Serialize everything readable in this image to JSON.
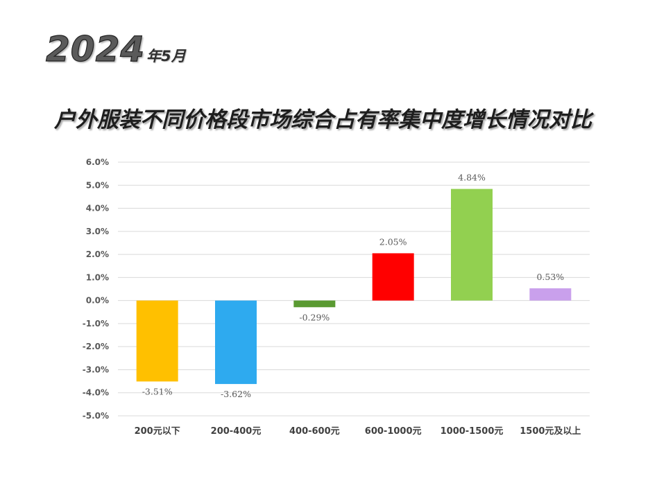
{
  "header": {
    "year": "2024",
    "month": "年5月"
  },
  "title": "户外服装不同价格段市场综合占有率集中度增长情况对比",
  "chart_data": {
    "type": "bar",
    "categories": [
      "200元以下",
      "200-400元",
      "400-600元",
      "600-1000元",
      "1000-1500元",
      "1500元及以上"
    ],
    "values": [
      -3.51,
      -3.62,
      -0.29,
      2.05,
      4.84,
      0.53
    ],
    "data_labels": [
      "-3.51%",
      "-3.62%",
      "-0.29%",
      "2.05%",
      "4.84%",
      "0.53%"
    ],
    "colors": [
      "#FFC000",
      "#2EAAEF",
      "#5A9A32",
      "#FF0000",
      "#92D050",
      "#C9A0EC"
    ],
    "ylim": [
      -5,
      6
    ],
    "yticks": [
      6,
      5,
      4,
      3,
      2,
      1,
      0,
      -1,
      -2,
      -3,
      -4,
      -5
    ],
    "ytick_labels": [
      "6.0%",
      "5.0%",
      "4.0%",
      "3.0%",
      "2.0%",
      "1.0%",
      "0.0%",
      "-1.0%",
      "-2.0%",
      "-3.0%",
      "-4.0%",
      "-5.0%"
    ],
    "grid": true,
    "legend": "none"
  }
}
